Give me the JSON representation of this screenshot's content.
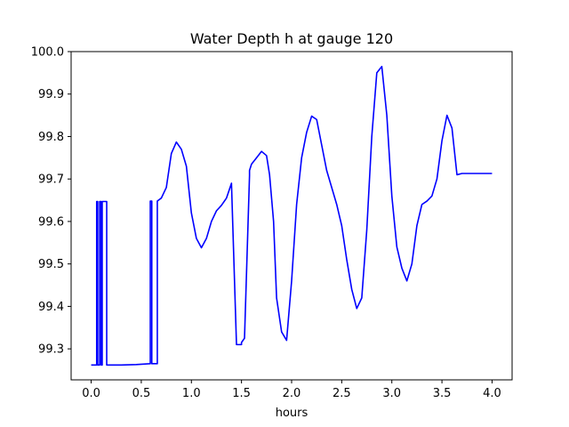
{
  "chart_data": {
    "type": "line",
    "title": "Water Depth h at gauge 120",
    "xlabel": "hours",
    "ylabel": "",
    "xlim": [
      -0.2,
      4.2
    ],
    "ylim": [
      99.227,
      100.0
    ],
    "grid": false,
    "x_ticks": [
      {
        "value": 0.0,
        "label": "0.0"
      },
      {
        "value": 0.5,
        "label": "0.5"
      },
      {
        "value": 1.0,
        "label": "1.0"
      },
      {
        "value": 1.5,
        "label": "1.5"
      },
      {
        "value": 2.0,
        "label": "2.0"
      },
      {
        "value": 2.5,
        "label": "2.5"
      },
      {
        "value": 3.0,
        "label": "3.0"
      },
      {
        "value": 3.5,
        "label": "3.5"
      },
      {
        "value": 4.0,
        "label": "4.0"
      }
    ],
    "y_ticks": [
      {
        "value": 99.3,
        "label": "99.3"
      },
      {
        "value": 99.4,
        "label": "99.4"
      },
      {
        "value": 99.5,
        "label": "99.5"
      },
      {
        "value": 99.6,
        "label": "99.6"
      },
      {
        "value": 99.7,
        "label": "99.7"
      },
      {
        "value": 99.8,
        "label": "99.8"
      },
      {
        "value": 99.9,
        "label": "99.9"
      },
      {
        "value": 100.0,
        "label": "100.0"
      }
    ],
    "series": [
      {
        "color": "#0000ff",
        "x": [
          0.0,
          0.055,
          0.055,
          0.065,
          0.065,
          0.085,
          0.085,
          0.1,
          0.1,
          0.11,
          0.11,
          0.155,
          0.155,
          0.3,
          0.45,
          0.59,
          0.59,
          0.605,
          0.605,
          0.625,
          0.625,
          0.655,
          0.655,
          0.66,
          0.66,
          0.7,
          0.75,
          0.8,
          0.85,
          0.9,
          0.95,
          1.0,
          1.05,
          1.1,
          1.15,
          1.2,
          1.25,
          1.3,
          1.35,
          1.4,
          1.45,
          1.5,
          1.5,
          1.53,
          1.58,
          1.58,
          1.6,
          1.65,
          1.7,
          1.75,
          1.78,
          1.82,
          1.85,
          1.9,
          1.95,
          2.0,
          2.05,
          2.1,
          2.15,
          2.2,
          2.25,
          2.3,
          2.35,
          2.4,
          2.45,
          2.5,
          2.55,
          2.6,
          2.65,
          2.7,
          2.75,
          2.8,
          2.85,
          2.9,
          2.95,
          3.0,
          3.05,
          3.1,
          3.15,
          3.2,
          3.25,
          3.3,
          3.35,
          3.4,
          3.45,
          3.5,
          3.55,
          3.6,
          3.65,
          3.7,
          3.75,
          3.8,
          3.85,
          3.9,
          3.95,
          4.0
        ],
        "y": [
          99.262,
          99.262,
          99.647,
          99.647,
          99.262,
          99.262,
          99.647,
          99.647,
          99.262,
          99.262,
          99.647,
          99.647,
          99.262,
          99.262,
          99.263,
          99.265,
          99.648,
          99.648,
          99.265,
          99.265,
          99.265,
          99.265,
          99.265,
          99.265,
          99.648,
          99.655,
          99.68,
          99.76,
          99.787,
          99.77,
          99.73,
          99.62,
          99.56,
          99.538,
          99.56,
          99.6,
          99.625,
          99.638,
          99.655,
          99.69,
          99.31,
          99.31,
          99.315,
          99.325,
          99.708,
          99.72,
          99.735,
          99.75,
          99.765,
          99.755,
          99.71,
          99.6,
          99.42,
          99.34,
          99.32,
          99.46,
          99.64,
          99.75,
          99.81,
          99.848,
          99.84,
          99.78,
          99.72,
          99.68,
          99.64,
          99.59,
          99.51,
          99.44,
          99.395,
          99.42,
          99.58,
          99.8,
          99.95,
          99.965,
          99.85,
          99.66,
          99.54,
          99.49,
          99.46,
          99.5,
          99.59,
          99.64,
          99.648,
          99.66,
          99.7,
          99.79,
          99.85,
          99.82,
          99.71,
          99.713,
          99.713,
          99.713,
          99.713,
          99.713,
          99.713,
          99.713
        ]
      }
    ]
  }
}
